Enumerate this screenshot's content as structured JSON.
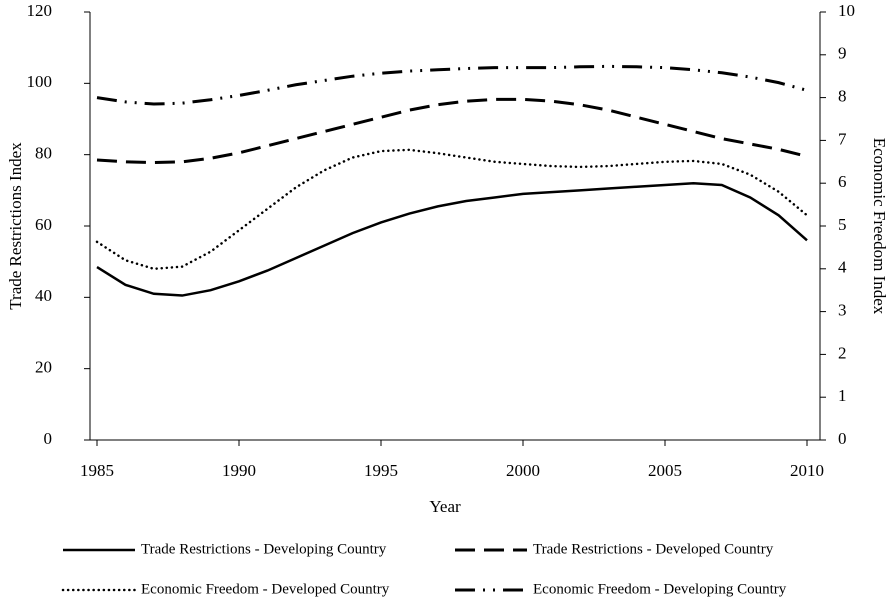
{
  "chart_data": {
    "type": "line",
    "x_label": "Year",
    "y_label": "Trade Restrictions Index",
    "y2_label": "Economic Freedom Index",
    "x": [
      1985,
      1986,
      1987,
      1988,
      1989,
      1990,
      1991,
      1992,
      1993,
      1994,
      1995,
      1996,
      1997,
      1998,
      1999,
      2000,
      2001,
      2002,
      2003,
      2004,
      2005,
      2006,
      2007,
      2008,
      2009,
      2010
    ],
    "xlim": [
      1985,
      2010
    ],
    "xticks": [
      1985,
      1990,
      1995,
      2000,
      2005,
      2010
    ],
    "ylim": [
      0,
      120
    ],
    "yticks": [
      0,
      20,
      40,
      60,
      80,
      100,
      120
    ],
    "y2lim": [
      0,
      10
    ],
    "y2ticks": [
      0,
      1,
      2,
      3,
      4,
      5,
      6,
      7,
      8,
      9,
      10
    ],
    "grid": false,
    "legend": "bottom",
    "series": [
      {
        "name": "Trade Restrictions - Developing Country",
        "color": "#000000",
        "line_style": "solid",
        "values": [
          48.5,
          43.5,
          41,
          40.5,
          42,
          44.5,
          47.5,
          51,
          54.5,
          58,
          61,
          63.5,
          65.5,
          67,
          68,
          69,
          69.5,
          70,
          70.5,
          71,
          71.5,
          72,
          71.5,
          68,
          63,
          56
        ]
      },
      {
        "name": "Trade Restrictions - Developed Country",
        "color": "#000000",
        "line_style": "dashed",
        "values": [
          78.5,
          78,
          77.8,
          78,
          79,
          80.5,
          82.5,
          84.5,
          86.5,
          88.5,
          90.5,
          92.5,
          94,
          95,
          95.5,
          95.5,
          95,
          94,
          92.5,
          90.5,
          88.5,
          86.5,
          84.5,
          83,
          81.5,
          79.5
        ]
      },
      {
        "name": "Economic Freedom - Developed Country",
        "color": "#000000",
        "line_style": "dotted",
        "axis": "y2",
        "values": [
          4.63,
          4.2,
          4.0,
          4.05,
          4.4,
          4.9,
          5.4,
          5.9,
          6.3,
          6.6,
          6.75,
          6.78,
          6.7,
          6.6,
          6.5,
          6.45,
          6.4,
          6.38,
          6.4,
          6.45,
          6.5,
          6.52,
          6.45,
          6.2,
          5.8,
          5.25
        ]
      },
      {
        "name": "Economic Freedom - Developing Country",
        "color": "#000000",
        "line_style": "dashdot",
        "axis": "y2",
        "values": [
          8.0,
          7.9,
          7.85,
          7.87,
          7.95,
          8.05,
          8.17,
          8.3,
          8.4,
          8.5,
          8.57,
          8.62,
          8.65,
          8.68,
          8.7,
          8.7,
          8.7,
          8.72,
          8.73,
          8.72,
          8.7,
          8.65,
          8.58,
          8.48,
          8.35,
          8.17
        ]
      }
    ]
  }
}
